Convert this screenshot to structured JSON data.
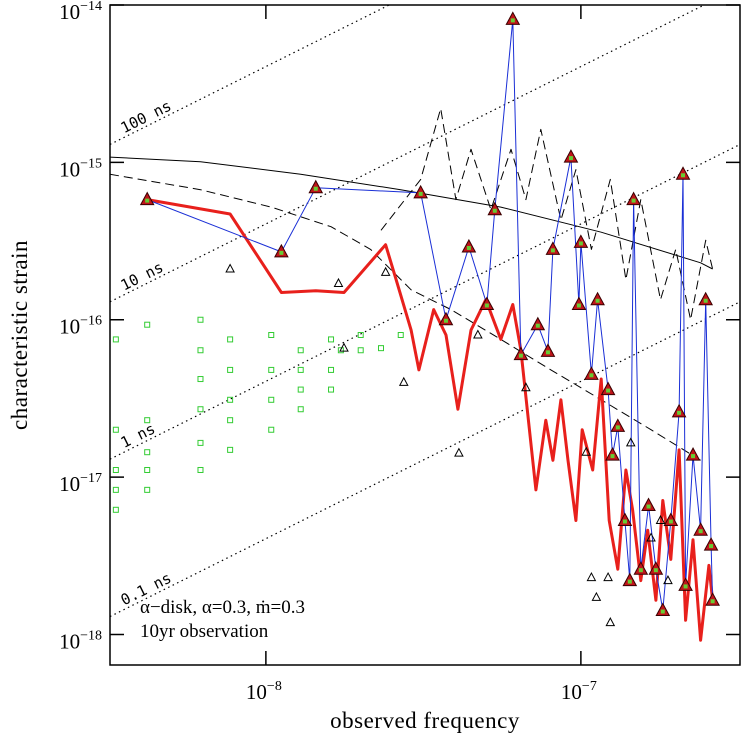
{
  "chart_data": {
    "type": "scatter",
    "xlabel": "observed frequency",
    "ylabel": "characteristic strain",
    "log_x": true,
    "log_y": true,
    "xlim": [
      3.2e-09,
      3.2e-07
    ],
    "ylim": [
      6.4e-19,
      1e-14
    ],
    "xticks": [
      {
        "value": 1e-08,
        "label": "10",
        "exponent": "−8"
      },
      {
        "value": 1e-07,
        "label": "10",
        "exponent": "−7"
      }
    ],
    "yticks": [
      {
        "value": 1e-18,
        "label": "10",
        "exponent": "−18"
      },
      {
        "value": 1e-17,
        "label": "10",
        "exponent": "−17"
      },
      {
        "value": 1e-16,
        "label": "10",
        "exponent": "−16"
      },
      {
        "value": 1e-15,
        "label": "10",
        "exponent": "−15"
      },
      {
        "value": 1e-14,
        "label": "10",
        "exponent": "−14"
      }
    ],
    "annotations": [
      "α−disk, α=0.3, ṁ=0.3",
      "10yr observation"
    ],
    "reference_lines": [
      {
        "label": "100 ns",
        "x": [
          3.2e-09,
          3.2e-07
        ],
        "y": [
          1.3e-15,
          1.3e-13
        ]
      },
      {
        "label": "10 ns",
        "x": [
          3.2e-09,
          3.2e-07
        ],
        "y": [
          1.3e-16,
          1.3e-14
        ]
      },
      {
        "label": "1 ns",
        "x": [
          3.2e-09,
          3.2e-07
        ],
        "y": [
          1.3e-17,
          1.3e-15
        ]
      },
      {
        "label": "0.1 ns",
        "x": [
          3.2e-09,
          3.2e-07
        ],
        "y": [
          1.3e-18,
          1.3e-16
        ]
      }
    ],
    "series": [
      {
        "marker": "square",
        "color": "#33cc33",
        "x": [
          3.34e-09,
          3.34e-09,
          4.2e-09,
          4.2e-09,
          6.2e-09,
          6.2e-09,
          6.2e-09,
          7.7e-09,
          7.7e-09,
          7.7e-09,
          1.04e-08,
          1.04e-08,
          1.04e-08,
          1.29e-08,
          1.29e-08,
          1.61e-08,
          1.61e-08,
          2e-08,
          2.32e-08,
          3.34e-09,
          6.2e-09,
          4.2e-09,
          3.34e-09,
          4.2e-09,
          6.2e-09,
          7.7e-09,
          1.04e-08,
          1.29e-08,
          1.73e-08,
          4.2e-09,
          3.34e-09,
          6.2e-09,
          7.7e-09,
          1.29e-08,
          1.61e-08,
          2e-08,
          2.68e-08
        ],
        "y": [
          1.11e-17,
          2e-17,
          8.3e-18,
          1.44e-17,
          2.7e-17,
          1.65e-17,
          4.2e-17,
          3.1e-17,
          7.5e-17,
          2.3e-17,
          4.8e-17,
          3.1e-17,
          8e-17,
          6.4e-17,
          3.6e-17,
          4.8e-17,
          7.5e-17,
          8e-17,
          6.6e-17,
          6.2e-18,
          1.11e-17,
          2.3e-17,
          7.5e-17,
          9.3e-17,
          1e-16,
          4.8e-17,
          2e-17,
          2.7e-17,
          6.4e-17,
          1.11e-17,
          8.3e-18,
          6.4e-17,
          1.49e-17,
          4.8e-17,
          3.6e-17,
          6.4e-17,
          8e-17
        ]
      },
      {
        "line": "solid",
        "color": "#000000",
        "x": [
          3.2e-09,
          6.2e-09,
          1.29e-08,
          2.68e-08,
          5.57e-08,
          1.16e-07,
          2.4e-07,
          2.62e-07
        ],
        "y": [
          1.08e-15,
          1.01e-15,
          8.4e-16,
          6.7e-16,
          5.2e-16,
          3.6e-16,
          2.3e-16,
          2.1e-16
        ]
      },
      {
        "line": "dashed",
        "color": "#000000",
        "x": [
          3.2e-09,
          6.2e-09,
          1.04e-08,
          1.61e-08,
          2.15e-08,
          2.89e-08,
          3.87e-08,
          5.57e-08,
          8.03e-08,
          1.16e-07,
          1.67e-07,
          2.4e-07
        ],
        "y": [
          8.4e-16,
          6.7e-16,
          5.2e-16,
          3.9e-16,
          2.8e-16,
          1.55e-16,
          1.16e-16,
          7.5e-17,
          4.8e-17,
          3.1e-17,
          2e-17,
          1.28e-17
        ]
      },
      {
        "line": "dashed",
        "color": "#000000",
        "x": [
          2.32e-08,
          3.1e-08,
          3.59e-08,
          4.01e-08,
          4.48e-08,
          5.18e-08,
          6e-08,
          6.69e-08,
          7.46e-08,
          8.64e-08,
          9.64e-08,
          1.08e-07,
          1.24e-07,
          1.39e-07,
          1.55e-07,
          1.79e-07,
          2e-07,
          2.23e-07,
          2.49e-07,
          2.62e-07
        ],
        "y": [
          3.7e-16,
          7.8e-16,
          2.2e-15,
          5.8e-16,
          1.21e-15,
          5e-16,
          1.21e-15,
          5.8e-16,
          1.62e-15,
          4.3e-16,
          9e-16,
          2.8e-16,
          7.8e-16,
          1.8e-16,
          5.8e-16,
          1.34e-16,
          2.8e-16,
          1e-16,
          3.2e-16,
          2.1e-16
        ]
      },
      {
        "line": "solid",
        "color": "#e8201c",
        "linewidth": 3,
        "x": [
          4.2e-09,
          7.7e-09,
          1.12e-08,
          1.44e-08,
          1.77e-08,
          2.4e-08,
          2.59e-08,
          2.89e-08,
          3.06e-08,
          3.41e-08,
          3.73e-08,
          4.07e-08,
          4.48e-08,
          4.99e-08,
          5.57e-08,
          6.08e-08,
          6.45e-08,
          7.2e-08,
          7.74e-08,
          8.15e-08,
          8.64e-08,
          9.1e-08,
          9.64e-08,
          1.01e-07,
          1.09e-07,
          1.16e-07,
          1.23e-07,
          1.31e-07,
          1.39e-07,
          1.46e-07,
          1.55e-07,
          1.63e-07,
          1.73e-07,
          1.82e-07,
          1.93e-07,
          2.05e-07,
          2.15e-07,
          2.27e-07,
          2.4e-07,
          2.55e-07,
          2.62e-07
        ],
        "y": [
          5.8e-16,
          4.7e-16,
          1.49e-16,
          1.53e-16,
          1.49e-16,
          3e-16,
          1.8e-16,
          8.6e-17,
          4.8e-17,
          1.16e-16,
          8e-17,
          2.7e-17,
          8.6e-17,
          1.34e-16,
          7.5e-17,
          1.25e-16,
          6.4e-17,
          8.3e-18,
          2.3e-17,
          1.28e-17,
          3.1e-17,
          1.28e-17,
          5.3e-18,
          2e-17,
          1.11e-17,
          4.2e-17,
          5.3e-18,
          2.6e-18,
          1.11e-17,
          6.2e-18,
          2.2e-18,
          4.6e-18,
          1.65e-18,
          7.1e-18,
          3e-18,
          1.49e-17,
          1.23e-18,
          4e-18,
          9.2e-19,
          2.75e-18,
          1.65e-18
        ]
      },
      {
        "line": "solid",
        "color": "#1a2fd6",
        "linewidth": 1,
        "marker": "triangle",
        "marker_color": "#c0141a",
        "marker_center": "#66cc33",
        "x": [
          4.2e-09,
          1.12e-08,
          1.44e-08,
          3.1e-08,
          3.73e-08,
          4.41e-08,
          5.03e-08,
          5.33e-08,
          6.08e-08,
          6.45e-08,
          7.3e-08,
          7.86e-08,
          8.15e-08,
          9.3e-08,
          9.86e-08,
          1e-07,
          1.08e-07,
          1.13e-07,
          1.22e-07,
          1.26e-07,
          1.31e-07,
          1.38e-07,
          1.43e-07,
          1.47e-07,
          1.55e-07,
          1.64e-07,
          1.73e-07,
          1.82e-07,
          1.93e-07,
          2.05e-07,
          2.11e-07,
          2.15e-07,
          2.27e-07,
          2.4e-07,
          2.49e-07,
          2.59e-07,
          2.62e-07
        ],
        "y": [
          5.8e-16,
          2.7e-16,
          6.9e-16,
          6.4e-16,
          1e-16,
          2.9e-16,
          1.25e-16,
          5e-16,
          8.1e-15,
          6e-17,
          9.3e-17,
          6.3e-17,
          2.8e-16,
          1.08e-15,
          1.25e-16,
          3.1e-16,
          4.5e-17,
          1.34e-16,
          3.6e-17,
          1.38e-17,
          2.1e-17,
          5.3e-18,
          2.2e-18,
          5.8e-16,
          2.6e-18,
          6.6e-18,
          2.6e-18,
          1.42e-18,
          5.3e-18,
          2.6e-17,
          8.4e-16,
          2.05e-18,
          1.38e-17,
          4.6e-18,
          1.34e-16,
          3.7e-18,
          1.65e-18
        ]
      },
      {
        "marker": "triangle-open",
        "color": "#000000",
        "x": [
          7.7e-09,
          1.7e-08,
          1.77e-08,
          2.4e-08,
          2.74e-08,
          4.1e-08,
          4.71e-08,
          6.69e-08,
          1.04e-07,
          1.08e-07,
          1.12e-07,
          1.22e-07,
          1.24e-07,
          1.44e-07,
          1.67e-07,
          1.79e-07,
          1.89e-07
        ],
        "y": [
          2.1e-16,
          1.7e-16,
          6.6e-17,
          2e-16,
          4e-17,
          1.42e-17,
          8e-17,
          3.7e-17,
          1.44e-17,
          2.3e-18,
          1.72e-18,
          2.3e-18,
          1.19e-18,
          1.65e-17,
          4.1e-18,
          5.3e-18,
          2.2e-18
        ]
      }
    ]
  }
}
